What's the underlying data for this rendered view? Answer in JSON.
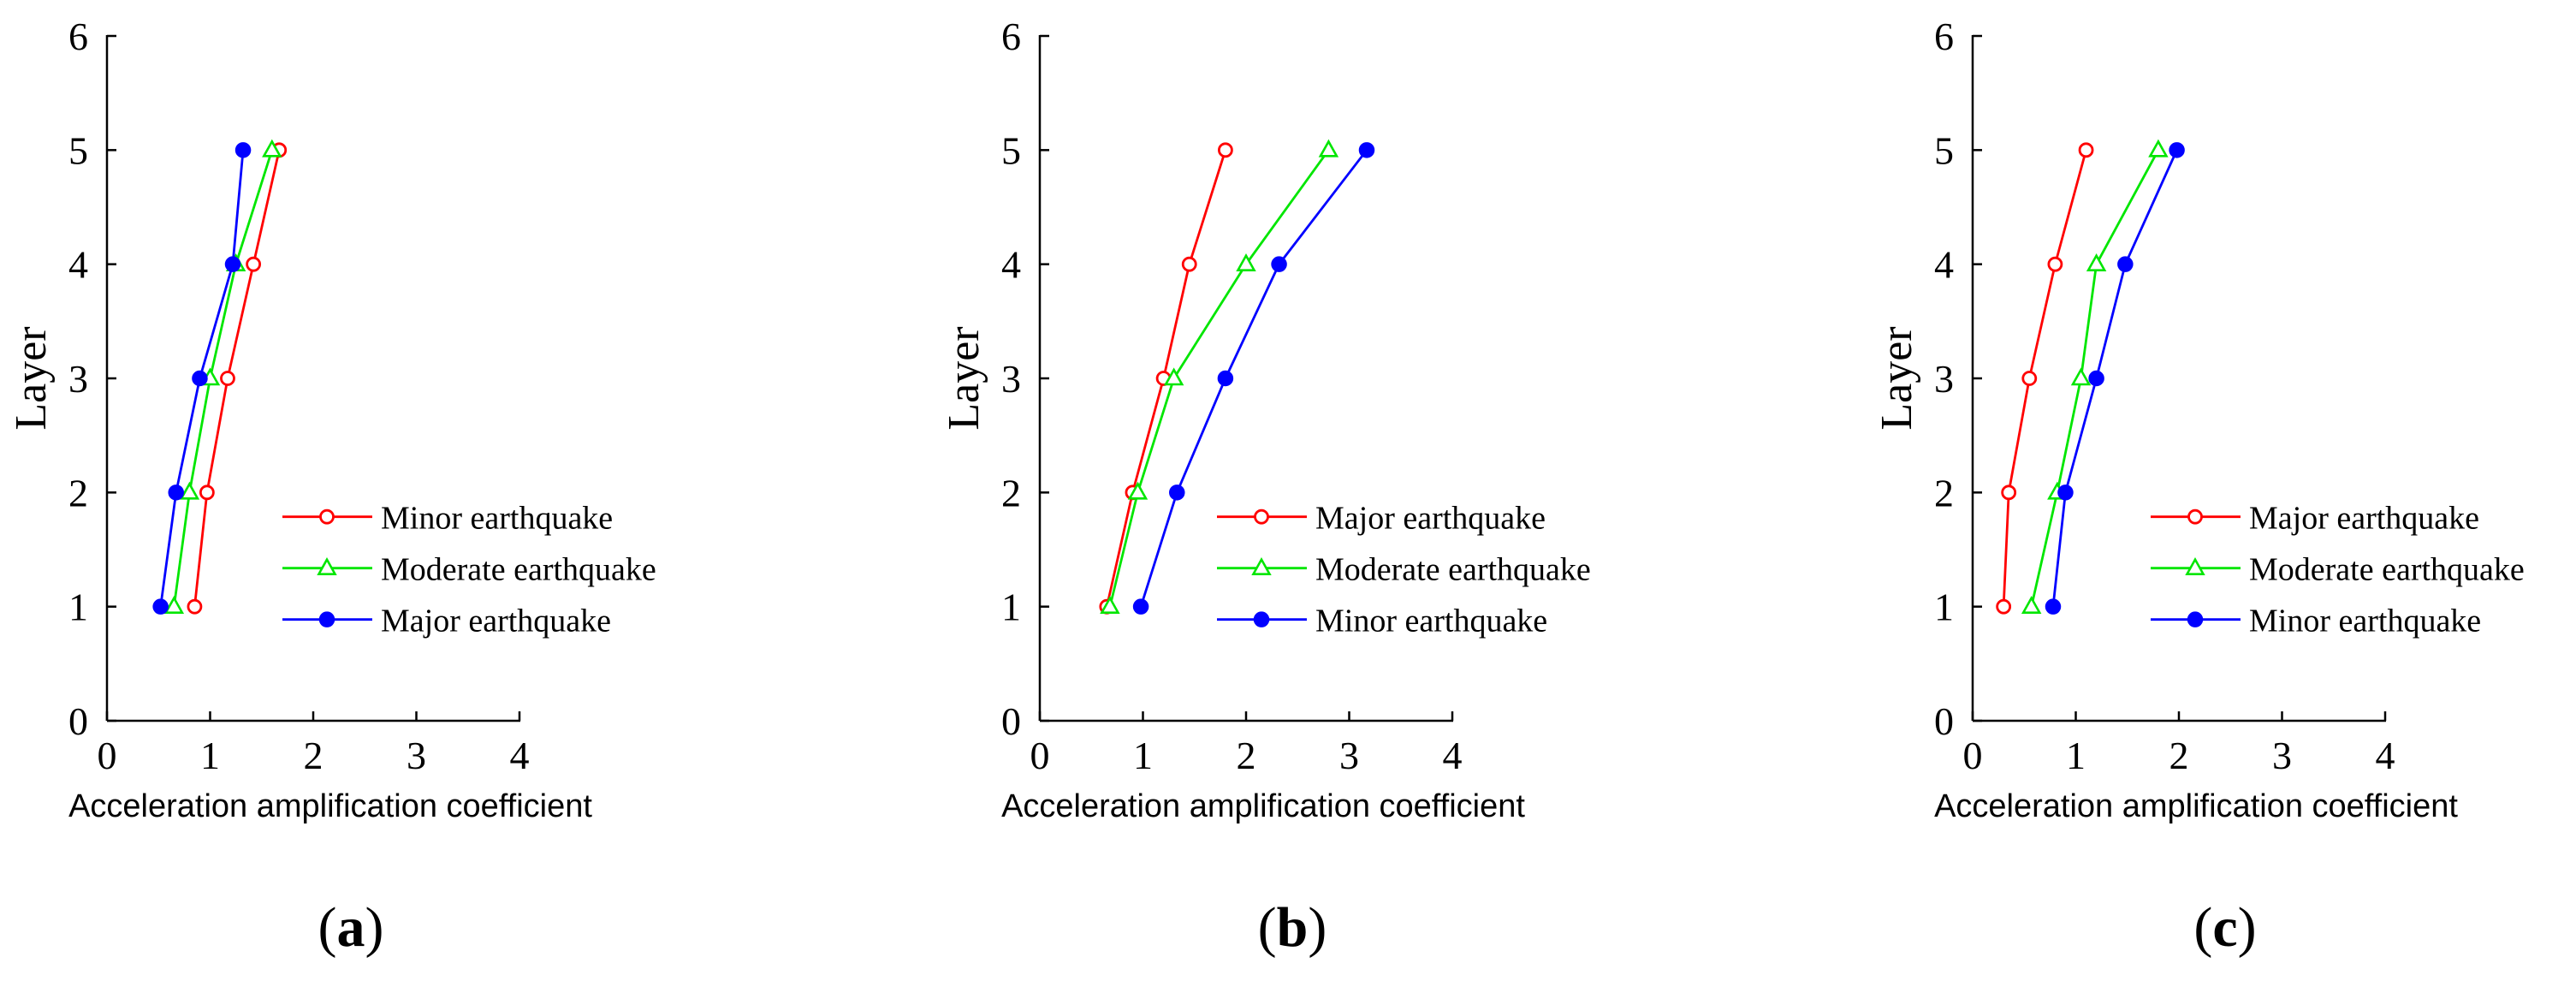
{
  "colors": {
    "red": "#ff0000",
    "green": "#00e600",
    "blue": "#0000ff",
    "axis": "#000000"
  },
  "chart_data": [
    {
      "type": "line",
      "panel_label_open": "(",
      "panel_label_letter": "a",
      "panel_label_close": ")",
      "xlabel": "Acceleration amplification coefficient",
      "ylabel": "Layer",
      "xlim": [
        0,
        4
      ],
      "ylim": [
        0,
        6
      ],
      "xticks": [
        "0",
        "1",
        "2",
        "3",
        "4"
      ],
      "yticks": [
        "0",
        "1",
        "2",
        "3",
        "4",
        "5",
        "6"
      ],
      "legend_position": "lower-right",
      "series": [
        {
          "name": "Minor earthquake",
          "color": "red",
          "marker": "open-circle",
          "x": [
            0.85,
            0.97,
            1.17,
            1.42,
            1.67
          ],
          "y": [
            1,
            2,
            3,
            4,
            5
          ]
        },
        {
          "name": "Moderate earthquake",
          "color": "green",
          "marker": "open-triangle",
          "x": [
            0.65,
            0.8,
            1.0,
            1.25,
            1.6
          ],
          "y": [
            1,
            2,
            3,
            4,
            5
          ]
        },
        {
          "name": "Major earthquake",
          "color": "blue",
          "marker": "filled-circle",
          "x": [
            0.52,
            0.67,
            0.9,
            1.22,
            1.32
          ],
          "y": [
            1,
            2,
            3,
            4,
            5
          ]
        }
      ]
    },
    {
      "type": "line",
      "panel_label_open": "(",
      "panel_label_letter": "b",
      "panel_label_close": ")",
      "xlabel": "Acceleration amplification coefficient",
      "ylabel": "Layer",
      "xlim": [
        0,
        4
      ],
      "ylim": [
        0,
        6
      ],
      "xticks": [
        "0",
        "1",
        "2",
        "3",
        "4"
      ],
      "yticks": [
        "0",
        "1",
        "2",
        "3",
        "4",
        "5",
        "6"
      ],
      "legend_position": "lower-right",
      "series": [
        {
          "name": "Major earthquake",
          "color": "red",
          "marker": "open-circle",
          "x": [
            0.65,
            0.9,
            1.2,
            1.45,
            1.8
          ],
          "y": [
            1,
            2,
            3,
            4,
            5
          ]
        },
        {
          "name": "Moderate earthquake",
          "color": "green",
          "marker": "open-triangle",
          "x": [
            0.68,
            0.95,
            1.3,
            2.0,
            2.8
          ],
          "y": [
            1,
            2,
            3,
            4,
            5
          ]
        },
        {
          "name": "Minor earthquake",
          "color": "blue",
          "marker": "filled-circle",
          "x": [
            0.98,
            1.33,
            1.8,
            2.32,
            3.17
          ],
          "y": [
            1,
            2,
            3,
            4,
            5
          ]
        }
      ]
    },
    {
      "type": "line",
      "panel_label_open": "(",
      "panel_label_letter": "c",
      "panel_label_close": ")",
      "xlabel": "Acceleration amplification coefficient",
      "ylabel": "Layer",
      "xlim": [
        0,
        4
      ],
      "ylim": [
        0,
        6
      ],
      "xticks": [
        "0",
        "1",
        "2",
        "3",
        "4"
      ],
      "yticks": [
        "0",
        "1",
        "2",
        "3",
        "4",
        "5",
        "6"
      ],
      "legend_position": "lower-right",
      "series": [
        {
          "name": "Major earthquake",
          "color": "red",
          "marker": "open-circle",
          "x": [
            0.3,
            0.35,
            0.55,
            0.8,
            1.1
          ],
          "y": [
            1,
            2,
            3,
            4,
            5
          ]
        },
        {
          "name": "Moderate earthquake",
          "color": "green",
          "marker": "open-triangle",
          "x": [
            0.57,
            0.82,
            1.05,
            1.2,
            1.8
          ],
          "y": [
            1,
            2,
            3,
            4,
            5
          ]
        },
        {
          "name": "Minor earthquake",
          "color": "blue",
          "marker": "filled-circle",
          "x": [
            0.78,
            0.9,
            1.2,
            1.48,
            1.98
          ],
          "y": [
            1,
            2,
            3,
            4,
            5
          ]
        }
      ]
    }
  ]
}
